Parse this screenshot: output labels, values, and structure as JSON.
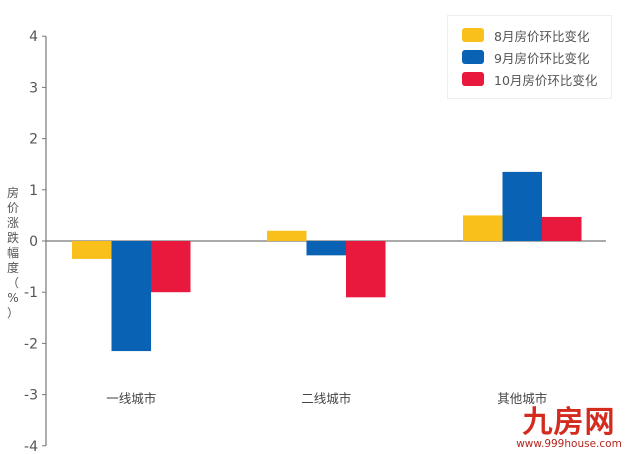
{
  "chart_data": {
    "type": "bar",
    "title": "",
    "xlabel": "",
    "ylabel": "房价涨跌幅度（%）",
    "ylim": [
      -4,
      4
    ],
    "yticks": [
      4,
      3,
      2,
      1,
      0,
      -1,
      -2,
      -3,
      -4
    ],
    "grid": false,
    "legend_position": "top-right",
    "categories": [
      "一线城市",
      "二线城市",
      "其他城市"
    ],
    "series": [
      {
        "name": "8月房价环比变化",
        "color": "#f9c01c",
        "values": [
          -0.35,
          0.2,
          0.5
        ]
      },
      {
        "name": "9月房价环比变化",
        "color": "#0a62b5",
        "values": [
          -2.15,
          -0.28,
          1.35
        ]
      },
      {
        "name": "10月房价环比变化",
        "color": "#e8193c",
        "values": [
          -1.0,
          -1.1,
          0.47
        ]
      }
    ]
  },
  "ylabel_chars": [
    "房",
    "价",
    "涨",
    "跌",
    "幅",
    "度",
    "（",
    "%",
    "）"
  ],
  "watermark": {
    "logo": "九房网",
    "url": "www.999house.com"
  }
}
